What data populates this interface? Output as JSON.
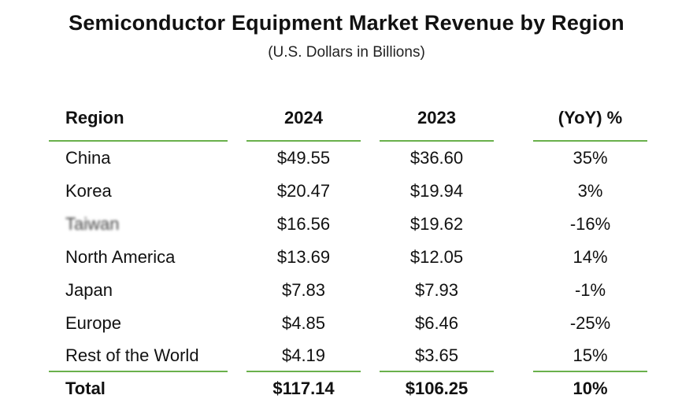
{
  "title": "Semiconductor Equipment Market Revenue by Region",
  "subtitle": "(U.S. Dollars in Billions)",
  "accent_color": "#6ab04c",
  "table": {
    "headers": [
      "Region",
      "2024",
      "2023",
      "(YoY) %"
    ],
    "rows": [
      [
        "China",
        "$49.55",
        "$36.60",
        "35%"
      ],
      [
        "Korea",
        "$20.47",
        "$19.94",
        "3%"
      ],
      [
        "Taiwan",
        "$16.56",
        "$19.62",
        "-16%"
      ],
      [
        "North America",
        "$13.69",
        "$12.05",
        "14%"
      ],
      [
        "Japan",
        "$7.83",
        "$7.93",
        "-1%"
      ],
      [
        "Europe",
        "$4.85",
        "$6.46",
        "-25%"
      ],
      [
        "Rest of the World",
        "$4.19",
        "$3.65",
        "15%"
      ]
    ],
    "total": [
      "Total",
      "$117.14",
      "$106.25",
      "10%"
    ]
  }
}
